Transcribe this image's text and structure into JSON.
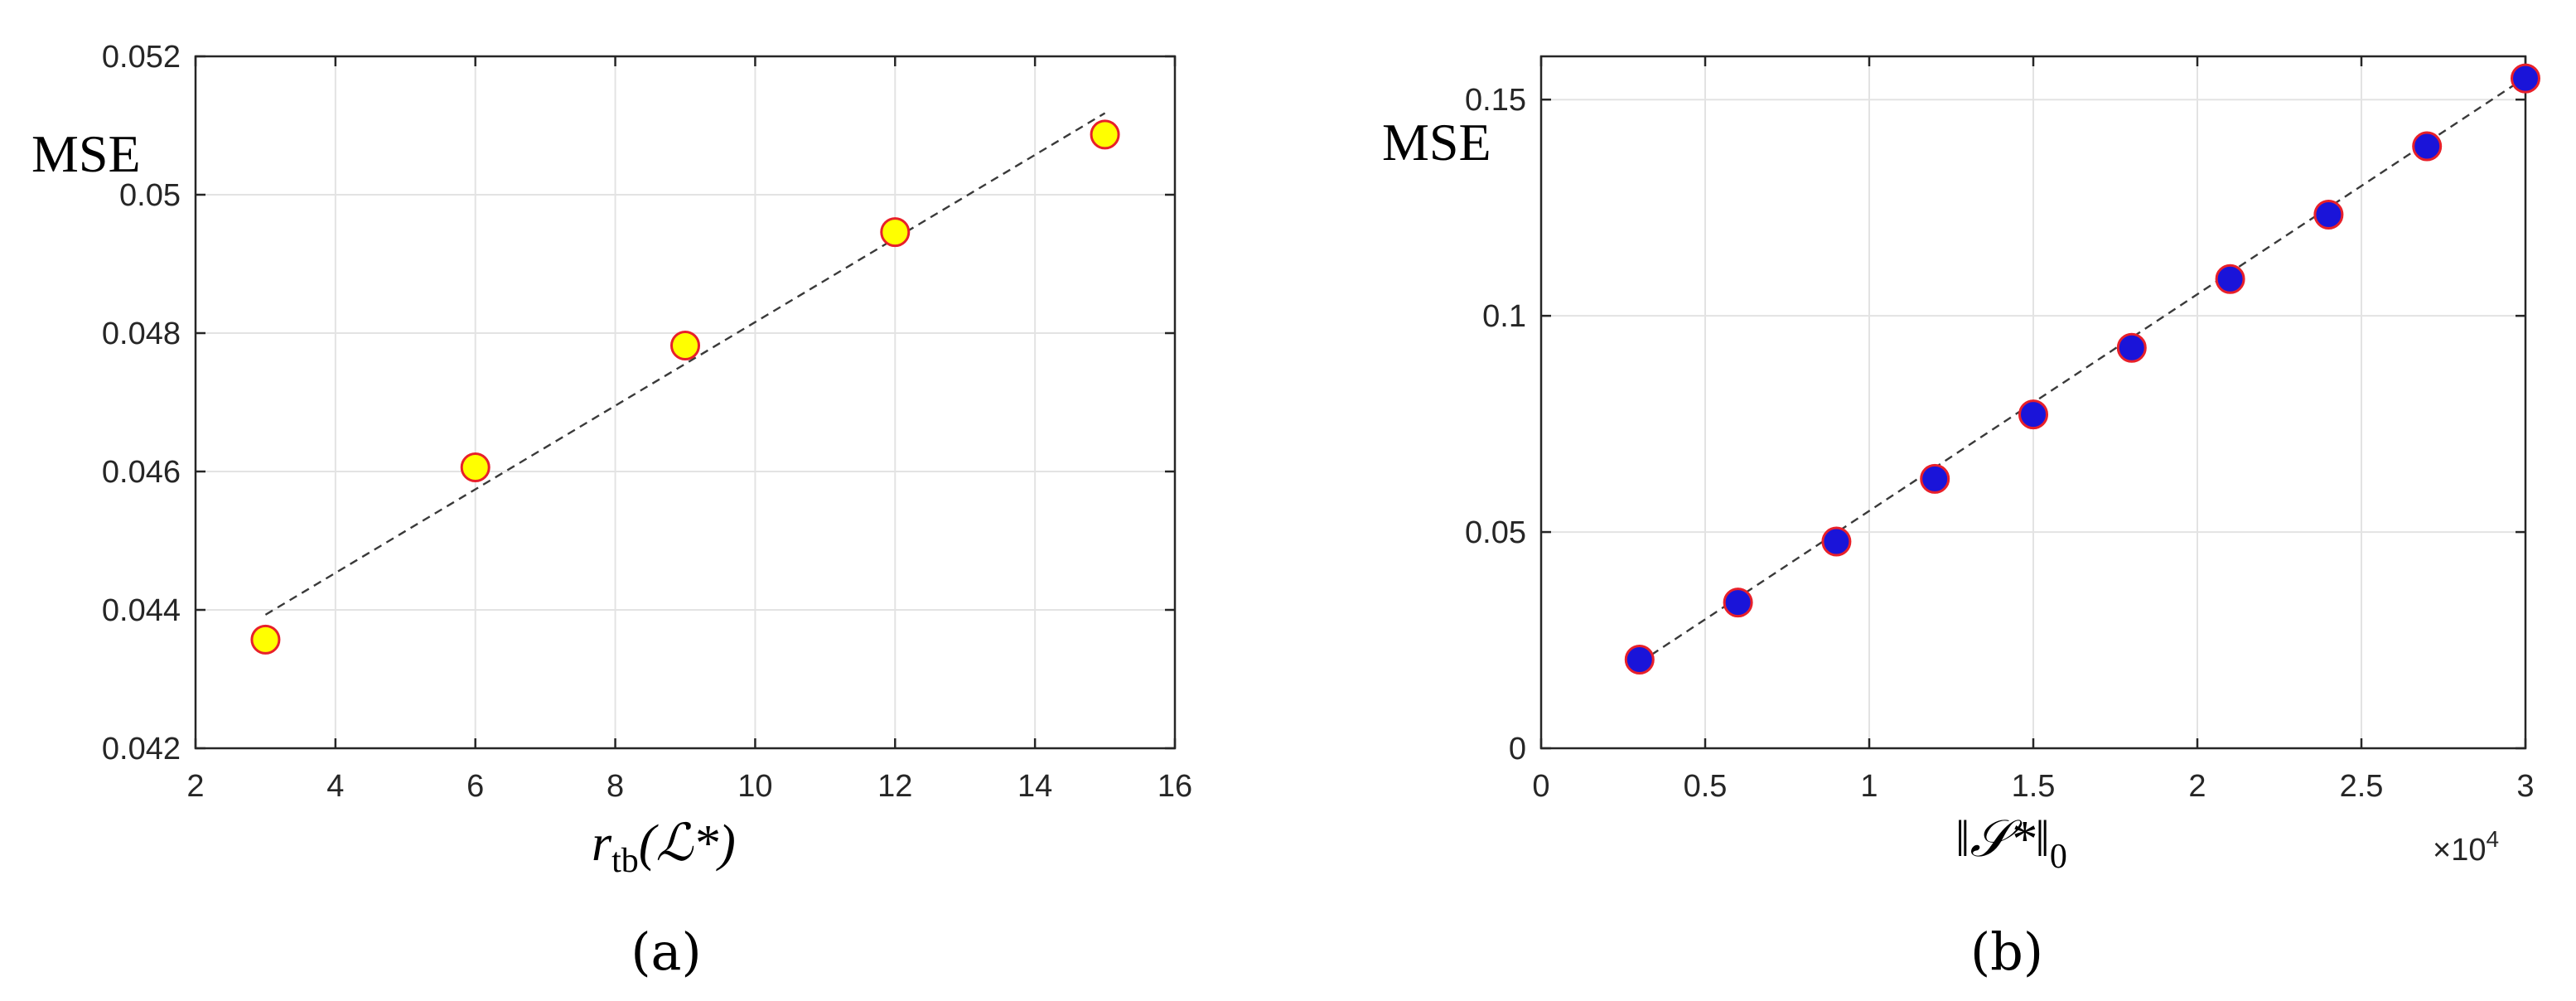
{
  "chart_data": [
    {
      "type": "scatter",
      "panel_label": "(a)",
      "title": "",
      "xlabel_base": "r",
      "xlabel_sub": "tb",
      "xlabel_arg": "(ℒ*)",
      "ylabel": "MSE",
      "xlim": [
        2,
        16
      ],
      "ylim": [
        0.042,
        0.052
      ],
      "xticks": [
        2,
        4,
        6,
        8,
        10,
        12,
        14,
        16
      ],
      "xtick_labels": [
        "2",
        "4",
        "6",
        "8",
        "10",
        "12",
        "14",
        "16"
      ],
      "yticks": [
        0.042,
        0.044,
        0.046,
        0.048,
        0.05,
        0.052
      ],
      "ytick_labels": [
        "0.042",
        "0.044",
        "0.046",
        "0.048",
        "0.05",
        "0.052"
      ],
      "grid": true,
      "marker_fill": "#ffff00",
      "marker_edge": "#e8202a",
      "series": [
        {
          "x": [
            3,
            6,
            9,
            12,
            15
          ],
          "y": [
            0.04357,
            0.04606,
            0.04782,
            0.04946,
            0.05087
          ]
        }
      ],
      "fit_line": {
        "x": [
          3,
          15
        ],
        "y": [
          0.04393,
          0.05118
        ]
      }
    },
    {
      "type": "scatter",
      "panel_label": "(b)",
      "title": "",
      "xlabel_main": "‖𝒮*‖",
      "xlabel_sub": "0",
      "ylabel": "MSE",
      "x_multiplier": "×10",
      "x_multiplier_exp": "4",
      "xlim": [
        0,
        3
      ],
      "ylim": [
        0,
        0.16
      ],
      "xticks": [
        0,
        0.5,
        1,
        1.5,
        2,
        2.5,
        3
      ],
      "xtick_labels": [
        "0",
        "0.5",
        "1",
        "1.5",
        "2",
        "2.5",
        "3"
      ],
      "yticks": [
        0,
        0.05,
        0.1,
        0.15
      ],
      "ytick_labels": [
        "0",
        "0.05",
        "0.1",
        "0.15"
      ],
      "grid": true,
      "marker_fill": "#1a14d9",
      "marker_edge": "#e8202a",
      "series": [
        {
          "x": [
            0.3,
            0.6,
            0.9,
            1.2,
            1.5,
            1.8,
            2.1,
            2.4,
            2.7,
            3.0
          ],
          "y": [
            0.0205,
            0.0337,
            0.0478,
            0.0623,
            0.0772,
            0.0926,
            0.1085,
            0.1234,
            0.1392,
            0.1549
          ]
        }
      ],
      "fit_line": {
        "x": [
          0.3,
          3.0
        ],
        "y": [
          0.0198,
          0.1551
        ]
      }
    }
  ]
}
